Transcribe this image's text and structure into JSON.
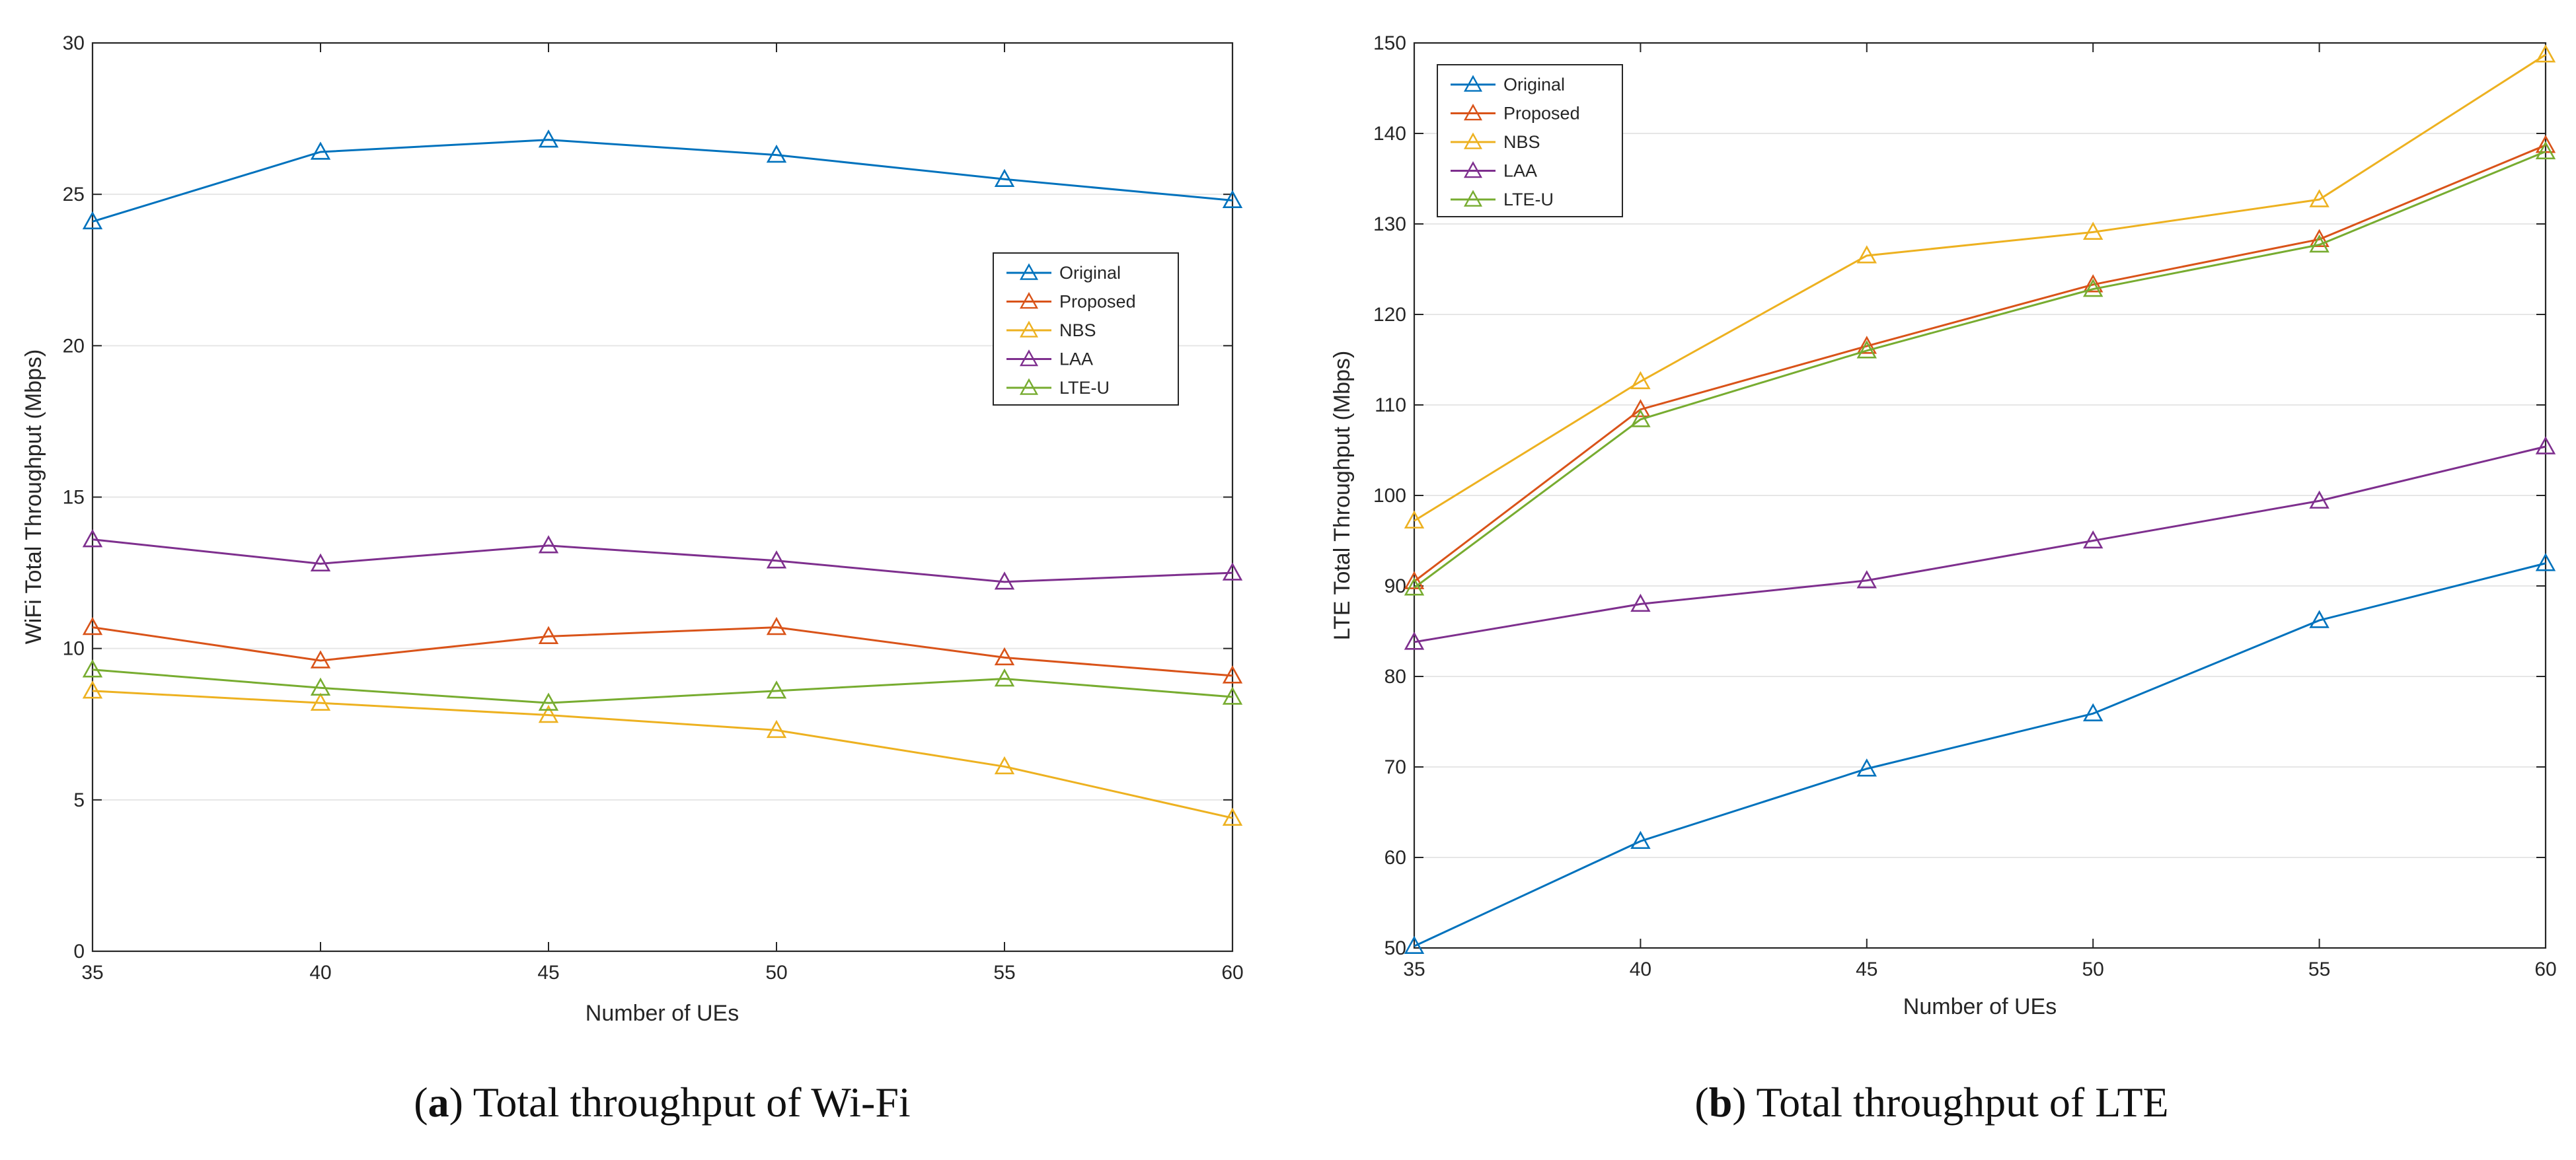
{
  "series_colors": {
    "Original": "#0072BD",
    "Proposed": "#D95319",
    "NBS": "#EDB120",
    "LAA": "#7E2F8E",
    "LTE-U": "#77AC30"
  },
  "chart_data": [
    {
      "type": "line",
      "caption_letter": "a",
      "caption_text": "Total throughput of Wi-Fi",
      "title": "",
      "xlabel": "Number of UEs",
      "ylabel": "WiFi Total Throughput (Mbps)",
      "xlim": [
        35,
        60
      ],
      "ylim": [
        0,
        30
      ],
      "xticks": [
        35,
        40,
        45,
        50,
        55,
        60
      ],
      "yticks": [
        0,
        5,
        10,
        15,
        20,
        25,
        30
      ],
      "grid": true,
      "legend_position": "right",
      "marker": "triangle",
      "x": [
        35,
        40,
        45,
        50,
        55,
        60
      ],
      "series": [
        {
          "name": "Original",
          "values": [
            24.1,
            26.4,
            26.8,
            26.3,
            25.5,
            24.8
          ]
        },
        {
          "name": "Proposed",
          "values": [
            10.7,
            9.6,
            10.4,
            10.7,
            9.7,
            9.1
          ]
        },
        {
          "name": "NBS",
          "values": [
            8.6,
            8.2,
            7.8,
            7.3,
            6.1,
            4.4
          ]
        },
        {
          "name": "LAA",
          "values": [
            13.6,
            12.8,
            13.4,
            12.9,
            12.2,
            12.5
          ]
        },
        {
          "name": "LTE-U",
          "values": [
            9.3,
            8.7,
            8.2,
            8.6,
            9.0,
            8.4
          ]
        }
      ]
    },
    {
      "type": "line",
      "caption_letter": "b",
      "caption_text": "Total throughput of LTE",
      "title": "",
      "xlabel": "Number of UEs",
      "ylabel": "LTE Total Throughput (Mbps)",
      "xlim": [
        35,
        60
      ],
      "ylim": [
        50,
        150
      ],
      "xticks": [
        35,
        40,
        45,
        50,
        55,
        60
      ],
      "yticks": [
        50,
        60,
        70,
        80,
        90,
        100,
        110,
        120,
        130,
        140,
        150
      ],
      "grid": true,
      "legend_position": "top-left",
      "marker": "triangle",
      "x": [
        35,
        40,
        45,
        50,
        55,
        60
      ],
      "series": [
        {
          "name": "Original",
          "values": [
            50.2,
            61.8,
            69.8,
            75.9,
            86.2,
            92.5
          ]
        },
        {
          "name": "Proposed",
          "values": [
            90.5,
            109.5,
            116.5,
            123.3,
            128.3,
            138.7
          ]
        },
        {
          "name": "NBS",
          "values": [
            97.2,
            112.6,
            126.5,
            129.1,
            132.7,
            148.7
          ]
        },
        {
          "name": "LAA",
          "values": [
            83.8,
            88.0,
            90.6,
            95.0,
            99.4,
            105.4
          ]
        },
        {
          "name": "LTE-U",
          "values": [
            89.8,
            108.4,
            116.0,
            122.8,
            127.7,
            138.0
          ]
        }
      ]
    }
  ]
}
